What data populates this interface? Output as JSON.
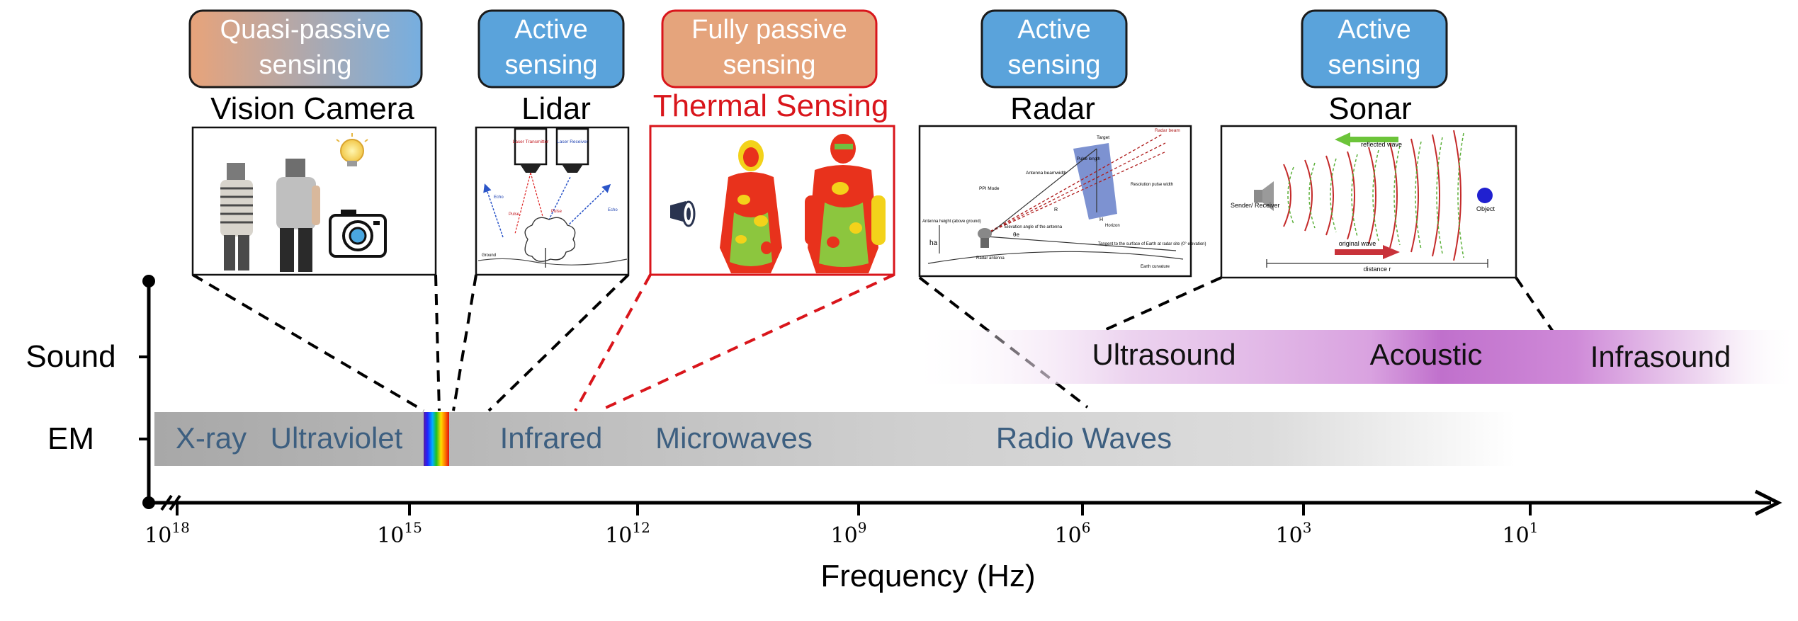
{
  "badges": [
    {
      "line1": "Quasi-passive",
      "line2": "sensing",
      "kind": "quasi"
    },
    {
      "line1": "Active",
      "line2": "sensing",
      "kind": "active"
    },
    {
      "line1": "Fully passive",
      "line2": "sensing",
      "kind": "passive"
    },
    {
      "line1": "Active",
      "line2": "sensing",
      "kind": "active"
    },
    {
      "line1": "Active",
      "line2": "sensing",
      "kind": "active"
    }
  ],
  "sensors": [
    {
      "title": "Vision Camera",
      "color": "#000000"
    },
    {
      "title": "Lidar",
      "color": "#000000"
    },
    {
      "title": "Thermal Sensing",
      "color": "#d9151b"
    },
    {
      "title": "Radar",
      "color": "#000000"
    },
    {
      "title": "Sonar",
      "color": "#000000"
    }
  ],
  "lidar_img": {
    "transmitter": "Laser Transmitter",
    "receiver": "Laser Receiver",
    "echo": "Echo",
    "pulse": "Pulse",
    "ground": "Ground"
  },
  "radar_img": {
    "target": "Target",
    "radar_beam": "Radar beam",
    "antenna_beamwidth": "Antenna beamwidth",
    "pulse_length": "Pulse length",
    "resolution_pulse_width": "Resolution pulse width",
    "ppi_mode": "PPI Mode",
    "elevation_angle": "Elevation angle of the antenna",
    "antenna_height": "Antenna height (above ground)",
    "radar_antenna": "Radar antenna",
    "horizon": "Horizon",
    "tangent": "Tangent to the surface of Earth at radar site (0° elevation)",
    "earth_curvature": "Earth curvature",
    "r_label": "R",
    "h_label": "H",
    "ha_label": "ha",
    "theta_e": "θe"
  },
  "sonar_img": {
    "reflected_wave": "reflected wave",
    "original_wave": "original wave",
    "sender": "Sender/ Receiver",
    "object": "Object",
    "distance": "distance r"
  },
  "rows": {
    "sound": "Sound",
    "em": "EM"
  },
  "em_bands": [
    "X-ray",
    "Ultraviolet",
    "Infrared",
    "Microwaves",
    "Radio Waves"
  ],
  "sound_bands": [
    "Ultrasound",
    "Acoustic",
    "Infrasound"
  ],
  "ticks": [
    {
      "base": "10",
      "exp": "18"
    },
    {
      "base": "10",
      "exp": "15"
    },
    {
      "base": "10",
      "exp": "12"
    },
    {
      "base": "10",
      "exp": "9"
    },
    {
      "base": "10",
      "exp": "6"
    },
    {
      "base": "10",
      "exp": "3"
    },
    {
      "base": "10",
      "exp": "1"
    }
  ],
  "x_axis_label": "Frequency (Hz)",
  "colors": {
    "active_fill": "#5aa3db",
    "quasi_left": "#e8a37a",
    "quasi_right": "#76aee0",
    "passive_fill": "#e5a47c",
    "passive_border": "#d9151b",
    "band_text": "#3d5f80",
    "sound_purple": "#bb5ec8"
  }
}
